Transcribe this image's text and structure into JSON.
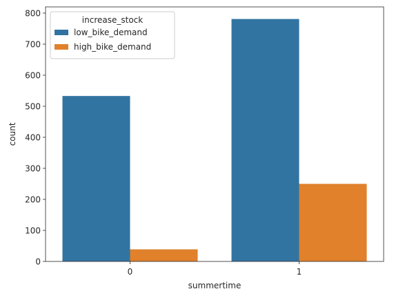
{
  "chart_data": {
    "type": "bar",
    "title": "",
    "xlabel": "summertime",
    "ylabel": "count",
    "categories": [
      "0",
      "1"
    ],
    "series": [
      {
        "name": "low_bike_demand",
        "color": "#3274a1",
        "values": [
          533,
          781
        ]
      },
      {
        "name": "high_bike_demand",
        "color": "#e1812c",
        "values": [
          39,
          250
        ]
      }
    ],
    "ylim": [
      0,
      820
    ],
    "yticks": [
      0,
      100,
      200,
      300,
      400,
      500,
      600,
      700,
      800
    ],
    "grid": false,
    "legend": {
      "title": "increase_stock",
      "placement": "top-left"
    }
  }
}
